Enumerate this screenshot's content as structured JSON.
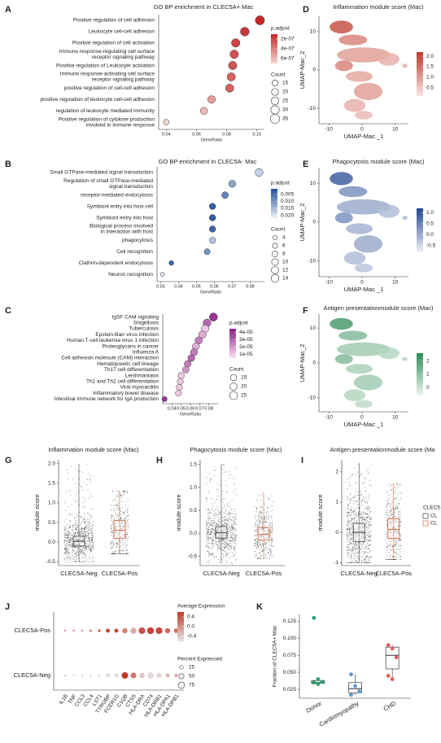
{
  "chart_data": [
    {
      "type": "dot",
      "label": "A",
      "title": "GO BP enrichment in CLEC5A+ Mac",
      "x_label": "GeneRatio",
      "categories": [
        [
          "Positive regulation of cell adhesion"
        ],
        [
          "Leukocyte cell-cell adhesion"
        ],
        [
          "Positive regulation of cell activation"
        ],
        [
          "Immune response-regulating cell surface",
          "receptor signaling pathway"
        ],
        [
          "Positive regulation of Leukocyte activation"
        ],
        [
          "Immune response-activating cell surface",
          "receptor signaling pathway"
        ],
        [
          "positive regulation of cell-cell adhesion"
        ],
        [
          "positive regulation of leukocyte cell-cell adhesion"
        ],
        [
          "regulation of leukocyte mediated immunity"
        ],
        [
          "Positive regulation of cytokine production",
          "involved in immune response"
        ]
      ],
      "values": [
        0.102,
        0.092,
        0.086,
        0.085,
        0.084,
        0.083,
        0.082,
        0.07,
        0.065,
        0.04
      ],
      "counts": [
        35,
        32,
        30,
        30,
        29,
        29,
        28,
        24,
        22,
        13
      ],
      "p_adjust": [
        1e-07,
        1.5e-07,
        2e-07,
        2.5e-07,
        2.5e-07,
        3e-07,
        3e-07,
        5e-07,
        6e-07,
        7e-07
      ],
      "xlim": [
        0.035,
        0.105
      ],
      "xticks": [
        0.04,
        0.06,
        0.08,
        {
          "value": 0.1,
          "label": "0.10"
        }
      ],
      "color_legend_title": "p.adjust",
      "color_lim": [
        1e-07,
        7e-07
      ],
      "color_range": [
        "#c62828",
        "#f6d5d0"
      ],
      "color_ticks": [
        {
          "value": 2e-07,
          "label": "2e-07"
        },
        {
          "value": 4e-07,
          "label": "4e-07"
        },
        {
          "value": 6e-07,
          "label": "6e-07"
        }
      ],
      "size_legend_title": "Count",
      "size_ticks": [
        15,
        20,
        25,
        30,
        35
      ]
    },
    {
      "type": "dot",
      "label": "B",
      "title": "GO BP enrichment in CLEC5A- Mac",
      "x_label": "GeneRatio",
      "categories": [
        [
          "Small GTPase-mediated signal transduction"
        ],
        [
          "Regulation of small GTPase-mediated",
          "signal transduction"
        ],
        [
          "receptor-mediated endocytosis"
        ],
        [
          "Symbiont entry into host cell"
        ],
        [
          "Symbiont entry into host"
        ],
        [
          "Biological process involved",
          "in interaction with host"
        ],
        [
          "phagocytosis"
        ],
        [
          "Cell recognition"
        ],
        [
          "Clathrin-dependent endocytosis"
        ],
        [
          "Neuron recognition"
        ]
      ],
      "values": [
        0.085,
        0.07,
        0.066,
        0.059,
        0.059,
        0.059,
        0.059,
        0.056,
        0.036,
        0.031
      ],
      "counts": [
        14,
        11,
        10,
        9,
        9,
        9,
        9,
        8,
        5,
        4
      ],
      "p_adjust": [
        0.018,
        0.012,
        0.008,
        0.003,
        0.003,
        0.004,
        0.016,
        0.01,
        0.004,
        0.02
      ],
      "xlim": [
        0.028,
        0.088
      ],
      "xticks": [
        0.03,
        0.04,
        0.05,
        0.06,
        0.07,
        0.08
      ],
      "color_legend_title": "p.adjust",
      "color_lim": [
        0.001,
        0.022
      ],
      "color_range": [
        "#1f4e9c",
        "#eef2fa"
      ],
      "color_ticks": [
        0.005,
        {
          "value": 0.01,
          "label": "0.010"
        },
        0.015,
        {
          "value": 0.02,
          "label": "0.020"
        }
      ],
      "size_legend_title": "Count",
      "size_ticks": [
        4,
        6,
        8,
        10,
        12,
        14
      ]
    },
    {
      "type": "dot",
      "label": "C",
      "x_label": "GeneRatio",
      "categories": [
        [
          "IgSF CAM signaling"
        ],
        [
          "Shigellosis"
        ],
        [
          "Tuberculosis"
        ],
        [
          "Epstein-Barr virus infection"
        ],
        [
          "Human T-cell leukemia virus 1 infection"
        ],
        [
          "Proteoglycans in cancer"
        ],
        [
          "Influenza A"
        ],
        [
          "Cell adhesion molecule (CAM) interaction"
        ],
        [
          "Hematopoietic cell lineage"
        ],
        [
          "Th17 cell differentiation"
        ],
        [
          "Leishmaniasis"
        ],
        [
          "Th1 and Th2 cell differentiation"
        ],
        [
          "Viral myocarditis"
        ],
        [
          "Inflammatory bowel disease"
        ],
        [
          "Intestinal immune network for IgA production"
        ]
      ],
      "values": [
        0.085,
        0.078,
        0.076,
        0.073,
        0.069,
        0.066,
        0.064,
        0.061,
        0.057,
        0.055,
        0.05,
        0.049,
        0.048,
        0.047,
        0.032
      ],
      "counts": [
        25,
        23,
        22,
        21,
        20,
        19,
        19,
        18,
        17,
        16,
        15,
        14,
        14,
        14,
        10
      ],
      "p_adjust": [
        4e-05,
        3e-05,
        1e-05,
        1.5e-05,
        2.5e-05,
        1.5e-05,
        2.5e-05,
        3e-05,
        2.5e-05,
        2e-05,
        1e-05,
        1e-05,
        1e-05,
        1e-05,
        4e-05
      ],
      "xlim": [
        0.03,
        0.09
      ],
      "xticks": [
        0.04,
        0.05,
        0.06,
        0.07,
        0.08
      ],
      "color_legend_title": "p.adjust",
      "color_lim": [
        4.5e-05,
        5e-06
      ],
      "color_range": [
        "#8b1c8b",
        "#fde0ef"
      ],
      "color_ticks": [
        {
          "value": 4e-05,
          "label": "4e-05"
        },
        {
          "value": 3e-05,
          "label": "3e-05"
        },
        {
          "value": 2e-05,
          "label": "2e-05"
        },
        {
          "value": 1e-05,
          "label": "1e-05"
        }
      ],
      "size_legend_title": "Count",
      "size_ticks": [
        15,
        20,
        25
      ]
    },
    {
      "type": "umap",
      "label": "D",
      "title": "Inflammation module score (Mac)",
      "x_label": "UMAP-Mac _1",
      "y_label": "UMAP-Mac_2",
      "xlim": [
        -13,
        14
      ],
      "xticks": [
        -10,
        0,
        10
      ],
      "ylim": [
        -14,
        14
      ],
      "yticks": [
        -10,
        0,
        10
      ],
      "color_lim": [
        2.2,
        0.1
      ],
      "color_range": [
        "#c0392b",
        "#f7e4e0"
      ],
      "color_ticks": [
        {
          "value": 2,
          "label": "2.0"
        },
        1.5,
        {
          "value": 1,
          "label": "1.0"
        },
        0.5
      ]
    },
    {
      "type": "umap",
      "label": "E",
      "title": "Phagocytosis module score (Mac)",
      "x_label": "UMAP-Mac _1",
      "y_label": "UMAP-Mac_2",
      "xlim": [
        -13,
        14
      ],
      "xticks": [
        -10,
        0,
        10
      ],
      "ylim": [
        -14,
        14
      ],
      "yticks": [
        -10,
        0,
        10
      ],
      "color_lim": [
        1.2,
        -0.8
      ],
      "color_range": [
        "#21468f",
        "#eef0f7"
      ],
      "color_ticks": [
        {
          "value": 1,
          "label": "1.0"
        },
        0.5,
        {
          "value": 0,
          "label": "0.0"
        },
        -0.5
      ]
    },
    {
      "type": "umap",
      "label": "F",
      "title": "Antigen presentationmodule score (Mac)",
      "x_label": "UMAP-Mac _1",
      "y_label": "UMAP-Mac_2",
      "xlim": [
        -13,
        14
      ],
      "xticks": [
        -10,
        0,
        10
      ],
      "ylim": [
        -14,
        14
      ],
      "yticks": [
        -10,
        0,
        10
      ],
      "color_lim": [
        2.6,
        -0.6
      ],
      "color_range": [
        "#2e8b57",
        "#eef6f0"
      ],
      "color_ticks": [
        2,
        1,
        0
      ]
    },
    {
      "type": "jitterbox",
      "label": "G",
      "title": "Inflammation module score (Mac)",
      "y_label": "module score",
      "categories": [
        "CLEC5A-Neg",
        "CLEC5A-Pos"
      ],
      "box": [
        [
          -0.1,
          0.02,
          0.15
        ],
        [
          0.1,
          0.3,
          0.55
        ]
      ],
      "range": [
        [
          -0.5,
          2.0
        ],
        [
          -0.3,
          1.3
        ]
      ],
      "colors": [
        "#444444",
        "#d9673b"
      ],
      "ylim": [
        -0.6,
        2.1
      ],
      "yticks": [
        -0.5,
        {
          "value": 0,
          "label": "0.0"
        },
        0.5,
        {
          "value": 1,
          "label": "1.0"
        },
        1.5,
        {
          "value": 2,
          "label": "2.0"
        }
      ]
    },
    {
      "type": "jitterbox",
      "label": "H",
      "title": "Phagocytosis module score (Mac)",
      "y_label": "module score",
      "categories": [
        "CLEC5A-Neg",
        "CLEC5A-Pos"
      ],
      "box": [
        [
          -0.1,
          0.02,
          0.15
        ],
        [
          -0.15,
          -0.02,
          0.12
        ]
      ],
      "range": [
        [
          -0.65,
          1.5
        ],
        [
          -0.55,
          0.9
        ]
      ],
      "colors": [
        "#444444",
        "#d9673b"
      ],
      "ylim": [
        -0.7,
        1.6
      ],
      "yticks": [
        -0.5,
        {
          "value": 0,
          "label": "0.0"
        },
        0.5,
        {
          "value": 1,
          "label": "1.0"
        },
        1.5
      ]
    },
    {
      "type": "jitterbox",
      "label": "I",
      "title": "Antigen presentationmodule score (Ma",
      "y_label": "module score",
      "categories": [
        "CLEC5A-Neg",
        "CLEC5A-Pos"
      ],
      "box": [
        [
          -0.3,
          0,
          0.3
        ],
        [
          -0.2,
          0.1,
          0.45
        ]
      ],
      "range": [
        [
          -1,
          2.3
        ],
        [
          -0.9,
          1.6
        ]
      ],
      "colors": [
        "#444444",
        "#d9673b"
      ],
      "ylim": [
        -1.1,
        2.4
      ],
      "yticks": [
        -1,
        0,
        1,
        2
      ],
      "legend_title": "CLEC5",
      "legend_entries": [
        "CL",
        "CL"
      ]
    },
    {
      "type": "dotmatrix",
      "label": "J",
      "rows": [
        "CLEC5A-Pos",
        "CLEC5A-Neg"
      ],
      "categories": [
        "IL1B",
        "TNF",
        "CCL3",
        "CCL4",
        "LST1",
        "TYROBP",
        "FCER1G",
        "C1QB",
        "CTSS",
        "HLA-DRA",
        "CD74",
        "HLA-DRB1",
        "HLA-DPA1",
        "HLA-DPB1"
      ],
      "avg_expression": [
        [
          0.2,
          0.3,
          0.3,
          0.4,
          0.5,
          0.5,
          0.5,
          0.1,
          -0.2,
          0.4,
          0.5,
          0.5,
          0.3,
          0.2
        ],
        [
          -0.2,
          -0.3,
          -0.3,
          -0.4,
          -0.5,
          -0.5,
          -0.5,
          0.6,
          0.2,
          -0.4,
          -0.5,
          -0.5,
          -0.3,
          -0.2
        ]
      ],
      "pct_expressed": [
        [
          5,
          5,
          5,
          8,
          12,
          30,
          30,
          50,
          70,
          85,
          90,
          85,
          50,
          40
        ],
        [
          5,
          5,
          5,
          5,
          10,
          30,
          30,
          80,
          60,
          55,
          70,
          50,
          35,
          25
        ]
      ],
      "color_legend_title": "Average Expression",
      "color_lim": [
        0.6,
        -0.6
      ],
      "color_range": [
        "#c0392b",
        "#e6e6e6"
      ],
      "color_ticks": [
        0.4,
        {
          "value": 0,
          "label": "0.0"
        },
        -0.4
      ],
      "size_legend_title": "Percent Expressed",
      "size_ticks": [
        25,
        50,
        75
      ]
    },
    {
      "type": "box",
      "label": "K",
      "y_label": "Fraction of CLEC5A+ Mac",
      "categories": [
        "Donor",
        "Cardiomyopathy",
        "CHD"
      ],
      "points": [
        [
          0.13,
          0.04,
          0.036,
          0.035,
          0.033
        ],
        [
          0.047,
          0.03,
          0.022,
          0.017
        ],
        [
          0.09,
          0.085,
          0.072,
          0.045,
          0.04
        ]
      ],
      "box": [
        [
          0.034,
          0.035,
          0.038
        ],
        [
          0.02,
          0.026,
          0.035
        ],
        [
          0.055,
          0.075,
          0.087
        ]
      ],
      "range": [
        [
          0.033,
          0.04
        ],
        [
          0.017,
          0.047
        ],
        [
          0.04,
          0.09
        ]
      ],
      "colors": [
        "#2e9e6e",
        "#5b9bd5",
        "#e06060"
      ],
      "ylim": [
        0.012,
        0.135
      ],
      "yticks": [
        0.025,
        {
          "value": 0.05,
          "label": "0.050"
        },
        0.075,
        {
          "value": 0.1,
          "label": "0.100"
        },
        0.125
      ]
    }
  ]
}
